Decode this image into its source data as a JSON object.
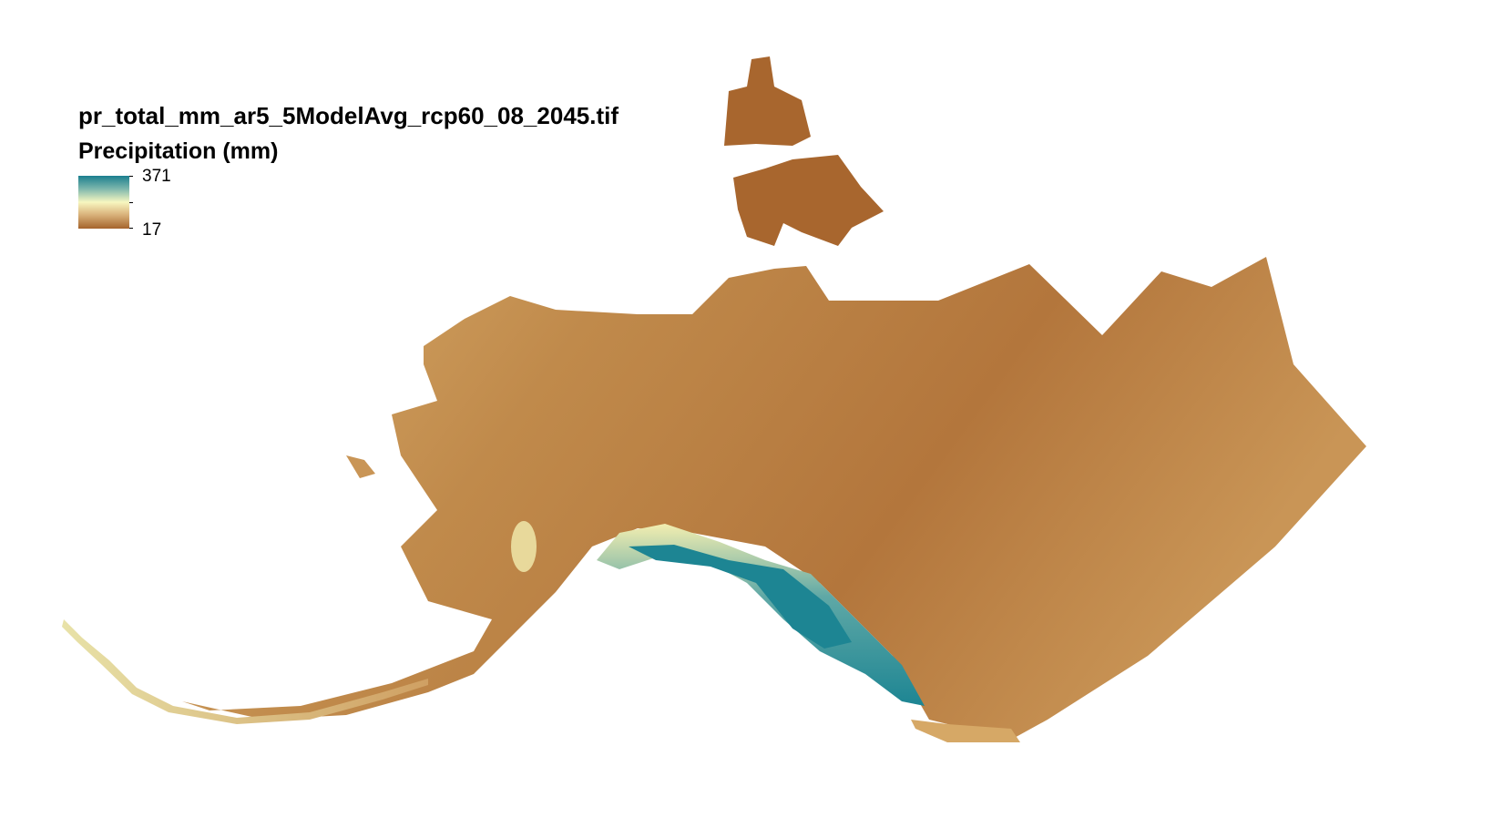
{
  "map": {
    "title": "pr_total_mm_ar5_5ModelAvg_rcp60_08_2045.tif",
    "legend": {
      "label": "Precipitation (mm)",
      "max": "371",
      "min": "17",
      "colors": [
        "#1b7f8f",
        "#f7f4b5",
        "#a5642c"
      ]
    },
    "region_colors": {
      "dry": "#b4773d",
      "mid": "#d6a866",
      "wet": "#1d8593",
      "pale": "#f3eeb0"
    }
  }
}
